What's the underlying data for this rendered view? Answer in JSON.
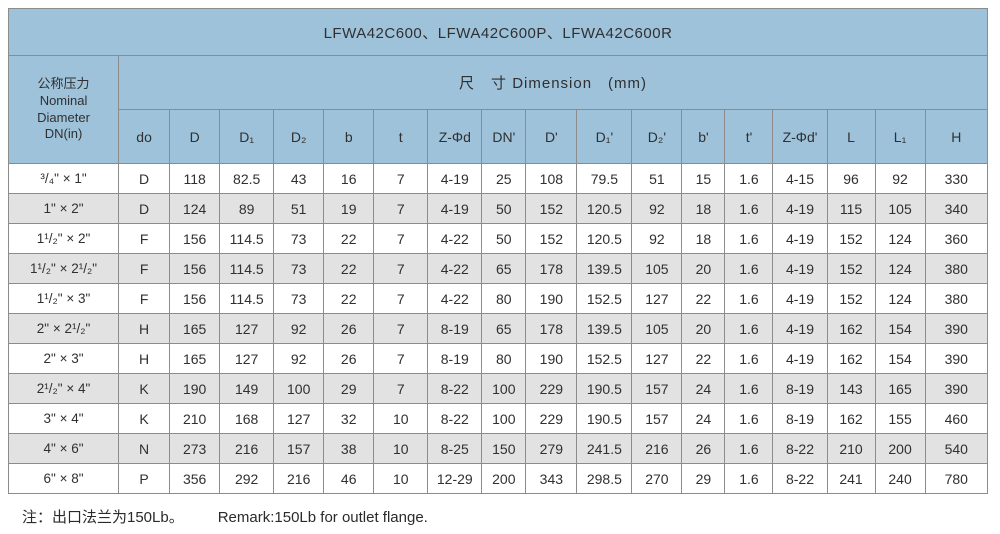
{
  "title": "LFWA42C600、LFWA42C600P、LFWA42C600R",
  "colors": {
    "header_blue": "#9ec2da",
    "row_alt_gray": "#e2e2e2",
    "row_white": "#ffffff",
    "border_gray": "#8c8c8c"
  },
  "table": {
    "corner_header": "公称压力\nNominal\nDiameter\nDN(in)",
    "dimension_header": "尺　寸  Dimension　(mm)",
    "columns": [
      "do",
      "D",
      "D₁",
      "D₂",
      "b",
      "t",
      "Z-Φd",
      "DN'",
      "D'",
      "D₁'",
      "D₂'",
      "b'",
      "t'",
      "Z-Φd'",
      "L",
      "L₁",
      "H"
    ],
    "rows": [
      {
        "size": "³/₄\" × 1\"",
        "values": [
          "D",
          "118",
          "82.5",
          "43",
          "16",
          "7",
          "4-19",
          "25",
          "108",
          "79.5",
          "51",
          "15",
          "1.6",
          "4-15",
          "96",
          "92",
          "330"
        ]
      },
      {
        "size": "1\" × 2\"",
        "values": [
          "D",
          "124",
          "89",
          "51",
          "19",
          "7",
          "4-19",
          "50",
          "152",
          "120.5",
          "92",
          "18",
          "1.6",
          "4-19",
          "115",
          "105",
          "340"
        ]
      },
      {
        "size": "1¹/₂\" × 2\"",
        "values": [
          "F",
          "156",
          "114.5",
          "73",
          "22",
          "7",
          "4-22",
          "50",
          "152",
          "120.5",
          "92",
          "18",
          "1.6",
          "4-19",
          "152",
          "124",
          "360"
        ]
      },
      {
        "size": "1¹/₂\" × 2¹/₂\"",
        "values": [
          "F",
          "156",
          "114.5",
          "73",
          "22",
          "7",
          "4-22",
          "65",
          "178",
          "139.5",
          "105",
          "20",
          "1.6",
          "4-19",
          "152",
          "124",
          "380"
        ]
      },
      {
        "size": "1¹/₂\" × 3\"",
        "values": [
          "F",
          "156",
          "114.5",
          "73",
          "22",
          "7",
          "4-22",
          "80",
          "190",
          "152.5",
          "127",
          "22",
          "1.6",
          "4-19",
          "152",
          "124",
          "380"
        ]
      },
      {
        "size": "2\" × 2¹/₂\"",
        "values": [
          "H",
          "165",
          "127",
          "92",
          "26",
          "7",
          "8-19",
          "65",
          "178",
          "139.5",
          "105",
          "20",
          "1.6",
          "4-19",
          "162",
          "154",
          "390"
        ]
      },
      {
        "size": "2\" × 3\"",
        "values": [
          "H",
          "165",
          "127",
          "92",
          "26",
          "7",
          "8-19",
          "80",
          "190",
          "152.5",
          "127",
          "22",
          "1.6",
          "4-19",
          "162",
          "154",
          "390"
        ]
      },
      {
        "size": "2¹/₂\" × 4\"",
        "values": [
          "K",
          "190",
          "149",
          "100",
          "29",
          "7",
          "8-22",
          "100",
          "229",
          "190.5",
          "157",
          "24",
          "1.6",
          "8-19",
          "143",
          "165",
          "390"
        ]
      },
      {
        "size": "3\" × 4\"",
        "values": [
          "K",
          "210",
          "168",
          "127",
          "32",
          "10",
          "8-22",
          "100",
          "229",
          "190.5",
          "157",
          "24",
          "1.6",
          "8-19",
          "162",
          "155",
          "460"
        ]
      },
      {
        "size": "4\" × 6\"",
        "values": [
          "N",
          "273",
          "216",
          "157",
          "38",
          "10",
          "8-25",
          "150",
          "279",
          "241.5",
          "216",
          "26",
          "1.6",
          "8-22",
          "210",
          "200",
          "540"
        ]
      },
      {
        "size": "6\" × 8\"",
        "values": [
          "P",
          "356",
          "292",
          "216",
          "46",
          "10",
          "12-29",
          "200",
          "343",
          "298.5",
          "270",
          "29",
          "1.6",
          "8-22",
          "241",
          "240",
          "780"
        ]
      }
    ]
  },
  "footer": {
    "cn": "注：出口法兰为150Lb。",
    "en": "Remark:150Lb for outlet flange."
  }
}
